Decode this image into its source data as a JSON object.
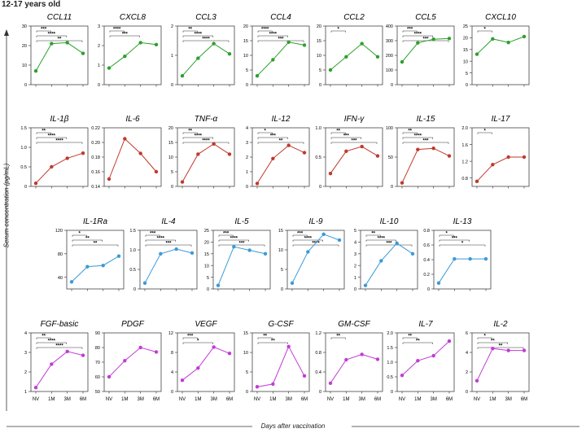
{
  "header": "12-17 years old",
  "y_axis_label": "Serum concentration (pg/mL)",
  "x_axis_label": "Days after vaccination",
  "colors": {
    "green": "#2ca02c",
    "red": "#c0392b",
    "blue": "#3a9ad9",
    "magenta": "#c23bd6"
  },
  "timepoints": [
    "NV",
    "1M",
    "3M",
    "6M"
  ],
  "chart_data": [
    {
      "type": "line",
      "title": "CCL11",
      "color": "green",
      "ylim": [
        0,
        30
      ],
      "ticks": [
        "0",
        "10",
        "20",
        "30"
      ],
      "values": [
        7,
        21,
        21.5,
        16
      ],
      "sig": [
        "***",
        "****",
        "**"
      ]
    },
    {
      "type": "line",
      "title": "CXCL8",
      "color": "green",
      "ylim": [
        0,
        3
      ],
      "ticks": [
        "0",
        "1",
        "2",
        "3"
      ],
      "values": [
        0.85,
        1.45,
        2.15,
        2.05
      ],
      "sig": [
        "****",
        "***"
      ]
    },
    {
      "type": "line",
      "title": "CCL3",
      "color": "green",
      "ylim": [
        0,
        2
      ],
      "ticks": [
        "0",
        "1",
        "2"
      ],
      "values": [
        0.3,
        0.9,
        1.4,
        1.05
      ],
      "sig": [
        "**",
        "****",
        "****"
      ]
    },
    {
      "type": "line",
      "title": "CCL4",
      "color": "green",
      "ylim": [
        0,
        20
      ],
      "ticks": [
        "0",
        "5",
        "10",
        "15",
        "20"
      ],
      "values": [
        3,
        8.5,
        14.5,
        13.5
      ],
      "sig": [
        "****",
        "****",
        "***"
      ]
    },
    {
      "type": "line",
      "title": "CCL2",
      "color": "green",
      "ylim": [
        0,
        20
      ],
      "ticks": [
        "0",
        "5",
        "10",
        "15",
        "20"
      ],
      "values": [
        5,
        9.5,
        14,
        9.5
      ],
      "sig": [
        "*"
      ]
    },
    {
      "type": "line",
      "title": "CCL5",
      "color": "green",
      "ylim": [
        0,
        400
      ],
      "ticks": [
        "0",
        "100",
        "200",
        "300",
        "400"
      ],
      "values": [
        155,
        285,
        310,
        315
      ],
      "sig": [
        "***",
        "****",
        "***"
      ]
    },
    {
      "type": "line",
      "title": "CXCL10",
      "color": "green",
      "ylim": [
        0,
        25
      ],
      "ticks": [
        "0",
        "5",
        "10",
        "15",
        "20",
        "25"
      ],
      "values": [
        13,
        19.5,
        18,
        20.5
      ],
      "sig": [
        "*"
      ]
    },
    {
      "type": "line",
      "title": "IL-1β",
      "color": "red",
      "ylim": [
        0,
        1.5
      ],
      "ticks": [
        "0",
        "0.5",
        "1.0",
        "1.5"
      ],
      "values": [
        0.08,
        0.5,
        0.72,
        0.85
      ],
      "sig": [
        "**",
        "****",
        "****"
      ]
    },
    {
      "type": "line",
      "title": "IL-6",
      "color": "red",
      "ylim": [
        0.14,
        0.22
      ],
      "ticks": [
        "0.14",
        "0.16",
        "0.18",
        "0.20",
        "0.22"
      ],
      "values": [
        0.15,
        0.205,
        0.185,
        0.16
      ],
      "sig": []
    },
    {
      "type": "line",
      "title": "TNF-α",
      "color": "red",
      "ylim": [
        0,
        20
      ],
      "ticks": [
        "0",
        "5",
        "10",
        "15",
        "20"
      ],
      "values": [
        1.5,
        11,
        14.5,
        11
      ],
      "sig": [
        "**",
        "****",
        "****"
      ]
    },
    {
      "type": "line",
      "title": "IL-12",
      "color": "red",
      "ylim": [
        0,
        4
      ],
      "ticks": [
        "0",
        "1",
        "2",
        "3",
        "4"
      ],
      "values": [
        0.2,
        1.9,
        2.8,
        2.3
      ],
      "sig": [
        "*",
        "***",
        "**"
      ]
    },
    {
      "type": "line",
      "title": "IFN-γ",
      "color": "red",
      "ylim": [
        0,
        1
      ],
      "ticks": [
        "0",
        "0.5",
        "1.0"
      ],
      "values": [
        0.22,
        0.6,
        0.68,
        0.52
      ],
      "sig": [
        "**",
        "***",
        "***"
      ]
    },
    {
      "type": "line",
      "title": "IL-15",
      "color": "red",
      "ylim": [
        0,
        100
      ],
      "ticks": [
        "0",
        "50",
        "100"
      ],
      "values": [
        6,
        63,
        65,
        52
      ],
      "sig": [
        "**",
        "****",
        "***"
      ]
    },
    {
      "type": "line",
      "title": "IL-17",
      "color": "red",
      "ylim": [
        0.6,
        2
      ],
      "ticks": [
        "0.8",
        "1.2",
        "1.6",
        "2.0"
      ],
      "values": [
        0.72,
        1.12,
        1.3,
        1.3
      ],
      "sig": [
        "*"
      ]
    },
    {
      "type": "line",
      "title": "IL-1Ra",
      "color": "blue",
      "ylim": [
        20,
        120
      ],
      "ticks": [
        "40",
        "80",
        "120"
      ],
      "values": [
        32,
        58,
        60,
        76
      ],
      "sig": [
        "*",
        "**",
        "**"
      ]
    },
    {
      "type": "line",
      "title": "IL-4",
      "color": "blue",
      "ylim": [
        0,
        1.5
      ],
      "ticks": [
        "0",
        "0.5",
        "1.0",
        "1.5"
      ],
      "values": [
        0.15,
        0.9,
        1.02,
        0.92
      ],
      "sig": [
        "***",
        "****",
        "***"
      ]
    },
    {
      "type": "line",
      "title": "IL-5",
      "color": "blue",
      "ylim": [
        0,
        25
      ],
      "ticks": [
        "0",
        "5",
        "10",
        "15",
        "20",
        "25"
      ],
      "values": [
        1.5,
        18,
        16.5,
        15
      ],
      "sig": [
        "***",
        "****",
        "***"
      ]
    },
    {
      "type": "line",
      "title": "IL-9",
      "color": "blue",
      "ylim": [
        0,
        15
      ],
      "ticks": [
        "0",
        "5",
        "10",
        "15"
      ],
      "values": [
        1.5,
        9.5,
        14,
        12.5
      ],
      "sig": [
        "***",
        "****",
        "****"
      ]
    },
    {
      "type": "line",
      "title": "IL-10",
      "color": "blue",
      "ylim": [
        0,
        5
      ],
      "ticks": [
        "0",
        "1",
        "2",
        "3",
        "4",
        "5"
      ],
      "values": [
        0.3,
        2.4,
        3.9,
        3.0
      ],
      "sig": [
        "**",
        "****",
        "***"
      ]
    },
    {
      "type": "line",
      "title": "IL-13",
      "color": "blue",
      "ylim": [
        0,
        0.8
      ],
      "ticks": [
        "0",
        "0.2",
        "0.4",
        "0.6",
        "0.8"
      ],
      "values": [
        0.08,
        0.41,
        0.41,
        0.41
      ],
      "sig": [
        "*",
        "***",
        "*"
      ]
    },
    {
      "type": "line",
      "title": "FGF-basic",
      "color": "magenta",
      "ylim": [
        1,
        4
      ],
      "ticks": [
        "1",
        "2",
        "3",
        "4"
      ],
      "values": [
        1.2,
        2.4,
        3.05,
        2.85
      ],
      "sig": [
        "**",
        "****",
        "****"
      ]
    },
    {
      "type": "line",
      "title": "PDGF",
      "color": "magenta",
      "ylim": [
        50,
        90
      ],
      "ticks": [
        "50",
        "60",
        "70",
        "80",
        "90"
      ],
      "values": [
        60,
        71,
        80,
        77
      ],
      "sig": []
    },
    {
      "type": "line",
      "title": "VEGF",
      "color": "magenta",
      "ylim": [
        0,
        12
      ],
      "ticks": [
        "0",
        "4",
        "8",
        "12"
      ],
      "values": [
        2.3,
        4.8,
        9.1,
        7.8
      ],
      "sig": [
        "***",
        "*"
      ]
    },
    {
      "type": "line",
      "title": "G-CSF",
      "color": "magenta",
      "ylim": [
        0,
        15
      ],
      "ticks": [
        "0",
        "5",
        "10",
        "15"
      ],
      "values": [
        1.2,
        1.9,
        11.5,
        4
      ],
      "sig": [
        "**",
        "**"
      ]
    },
    {
      "type": "line",
      "title": "GM-CSF",
      "color": "magenta",
      "ylim": [
        0,
        1.2
      ],
      "ticks": [
        "0",
        "0.4",
        "0.8",
        "1.2"
      ],
      "values": [
        0.17,
        0.65,
        0.76,
        0.66
      ],
      "sig": [
        "**"
      ]
    },
    {
      "type": "line",
      "title": "IL-7",
      "color": "magenta",
      "ylim": [
        0,
        2
      ],
      "ticks": [
        "0",
        "0.5",
        "1.0",
        "1.5",
        "2.0"
      ],
      "values": [
        0.55,
        1.05,
        1.22,
        1.72
      ],
      "sig": [
        "**",
        "**"
      ]
    },
    {
      "type": "line",
      "title": "IL-2",
      "color": "magenta",
      "ylim": [
        0,
        6
      ],
      "ticks": [
        "0",
        "2",
        "4",
        "6"
      ],
      "values": [
        1.1,
        4.4,
        4.2,
        4.2
      ],
      "sig": [
        "*",
        "**",
        "**"
      ]
    }
  ]
}
